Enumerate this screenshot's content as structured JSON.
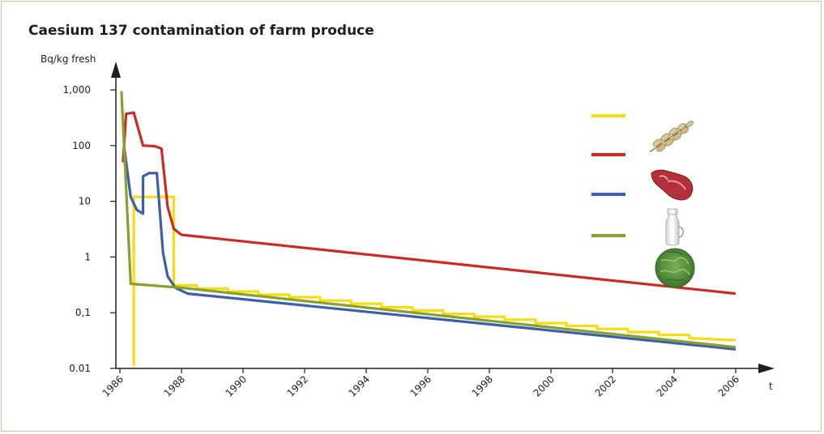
{
  "chart_data": {
    "type": "line",
    "title": "Caesium 137 contamination of farm produce",
    "ylabel": "Bq/kg fresh",
    "xlabel": "t",
    "y_scale": "log",
    "ylim": [
      0.01,
      1000
    ],
    "xlim": [
      1986,
      2006
    ],
    "y_ticks": [
      {
        "value": 1000,
        "label": "1,000"
      },
      {
        "value": 100,
        "label": "100"
      },
      {
        "value": 10,
        "label": "10"
      },
      {
        "value": 1,
        "label": "1"
      },
      {
        "value": 0.1,
        "label": "0,1"
      },
      {
        "value": 0.01,
        "label": "0.01"
      }
    ],
    "x_ticks": [
      {
        "value": 1986,
        "label": "1986"
      },
      {
        "value": 1988,
        "label": "1988"
      },
      {
        "value": 1990,
        "label": "1990"
      },
      {
        "value": 1992,
        "label": "1992"
      },
      {
        "value": 1994,
        "label": "1994"
      },
      {
        "value": 1996,
        "label": "1996"
      },
      {
        "value": 1998,
        "label": "1998"
      },
      {
        "value": 2000,
        "label": "2000"
      },
      {
        "value": 2002,
        "label": "2002"
      },
      {
        "value": 2004,
        "label": "2004"
      },
      {
        "value": 2006,
        "label": "2006"
      }
    ],
    "grid": false,
    "legend": "top-right, color swatches with product pictures",
    "series": [
      {
        "color": "#f7dc12",
        "icon": "cereal-grain-icon",
        "points": [
          [
            1986.45,
            0.011
          ],
          [
            1986.45,
            12
          ],
          [
            1987.75,
            12
          ],
          [
            1987.75,
            0.31
          ],
          [
            1988.5,
            0.31
          ],
          [
            1988.5,
            0.27
          ],
          [
            1989.5,
            0.27
          ],
          [
            1989.5,
            0.24
          ],
          [
            1990.5,
            0.24
          ],
          [
            1990.5,
            0.21
          ],
          [
            1991.5,
            0.21
          ],
          [
            1991.5,
            0.19
          ],
          [
            1992.5,
            0.19
          ],
          [
            1992.5,
            0.165
          ],
          [
            1993.5,
            0.165
          ],
          [
            1993.5,
            0.145
          ],
          [
            1994.5,
            0.145
          ],
          [
            1994.5,
            0.125
          ],
          [
            1995.5,
            0.125
          ],
          [
            1995.5,
            0.11
          ],
          [
            1996.5,
            0.11
          ],
          [
            1996.5,
            0.095
          ],
          [
            1997.5,
            0.095
          ],
          [
            1997.5,
            0.085
          ],
          [
            1998.5,
            0.085
          ],
          [
            1998.5,
            0.075
          ],
          [
            1999.5,
            0.075
          ],
          [
            1999.5,
            0.065
          ],
          [
            2000.5,
            0.065
          ],
          [
            2000.5,
            0.058
          ],
          [
            2001.5,
            0.058
          ],
          [
            2001.5,
            0.051
          ],
          [
            2002.5,
            0.051
          ],
          [
            2002.5,
            0.045
          ],
          [
            2003.5,
            0.045
          ],
          [
            2003.5,
            0.04
          ],
          [
            2004.5,
            0.04
          ],
          [
            2004.5,
            0.035
          ],
          [
            2006,
            0.032
          ]
        ]
      },
      {
        "color": "#cc2a24",
        "icon": "meat-icon",
        "points": [
          [
            1986.1,
            50
          ],
          [
            1986.2,
            370
          ],
          [
            1986.45,
            390
          ],
          [
            1986.75,
            100
          ],
          [
            1987.1,
            98
          ],
          [
            1987.2,
            95
          ],
          [
            1987.35,
            88
          ],
          [
            1987.55,
            8
          ],
          [
            1987.75,
            3.2
          ],
          [
            1988,
            2.5
          ],
          [
            2006,
            0.22
          ]
        ]
      },
      {
        "color": "#3e5dab",
        "icon": "milk-can-icon",
        "points": [
          [
            1986.15,
            85
          ],
          [
            1986.35,
            12
          ],
          [
            1986.55,
            7
          ],
          [
            1986.75,
            6
          ],
          [
            1986.75,
            28
          ],
          [
            1986.95,
            32
          ],
          [
            1987.2,
            32
          ],
          [
            1987.4,
            1.2
          ],
          [
            1987.55,
            0.45
          ],
          [
            1987.8,
            0.28
          ],
          [
            1988.2,
            0.22
          ],
          [
            2006,
            0.022
          ]
        ]
      },
      {
        "color": "#85a22c",
        "icon": "lettuce-icon",
        "points": [
          [
            1986.05,
            950
          ],
          [
            1986.35,
            0.33
          ],
          [
            1988,
            0.28
          ],
          [
            2006,
            0.024
          ]
        ]
      }
    ]
  }
}
